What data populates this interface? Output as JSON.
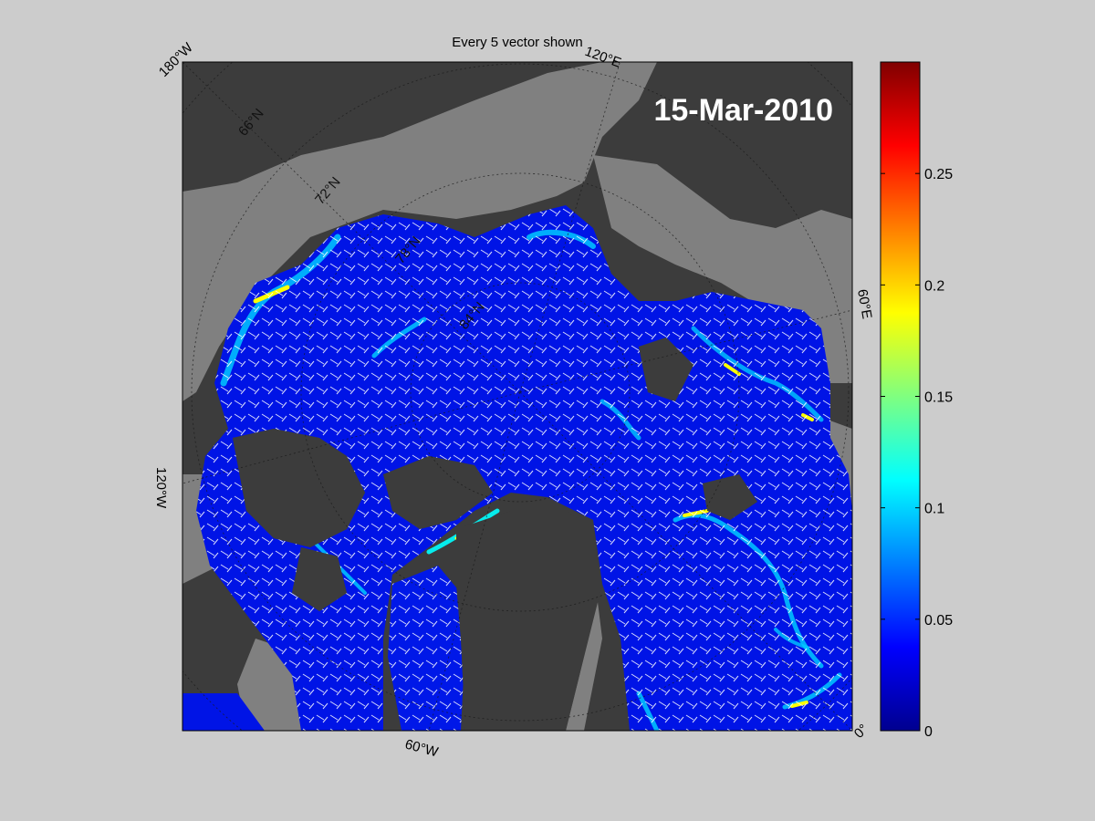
{
  "figure": {
    "title": "Every 5 vector shown",
    "date_label": "15-Mar-2010"
  },
  "map": {
    "longitude_labels": [
      "180°W",
      "120°E",
      "60°E",
      "0°",
      "60°W",
      "120°W"
    ],
    "latitude_labels": [
      "66°N",
      "72°N",
      "78°N",
      "84°N"
    ],
    "colors": {
      "background": "#cccccc",
      "land": "#3c3c3c",
      "open_water": "#808080",
      "ice_low": "#0014e6",
      "ice_high": "#00ffff",
      "vectors": "#ffffff"
    }
  },
  "colorbar": {
    "colormap": "jet",
    "range": [
      0,
      0.3
    ],
    "tick_labels": [
      "0",
      "0.05",
      "0.1",
      "0.15",
      "0.2",
      "0.25"
    ]
  }
}
